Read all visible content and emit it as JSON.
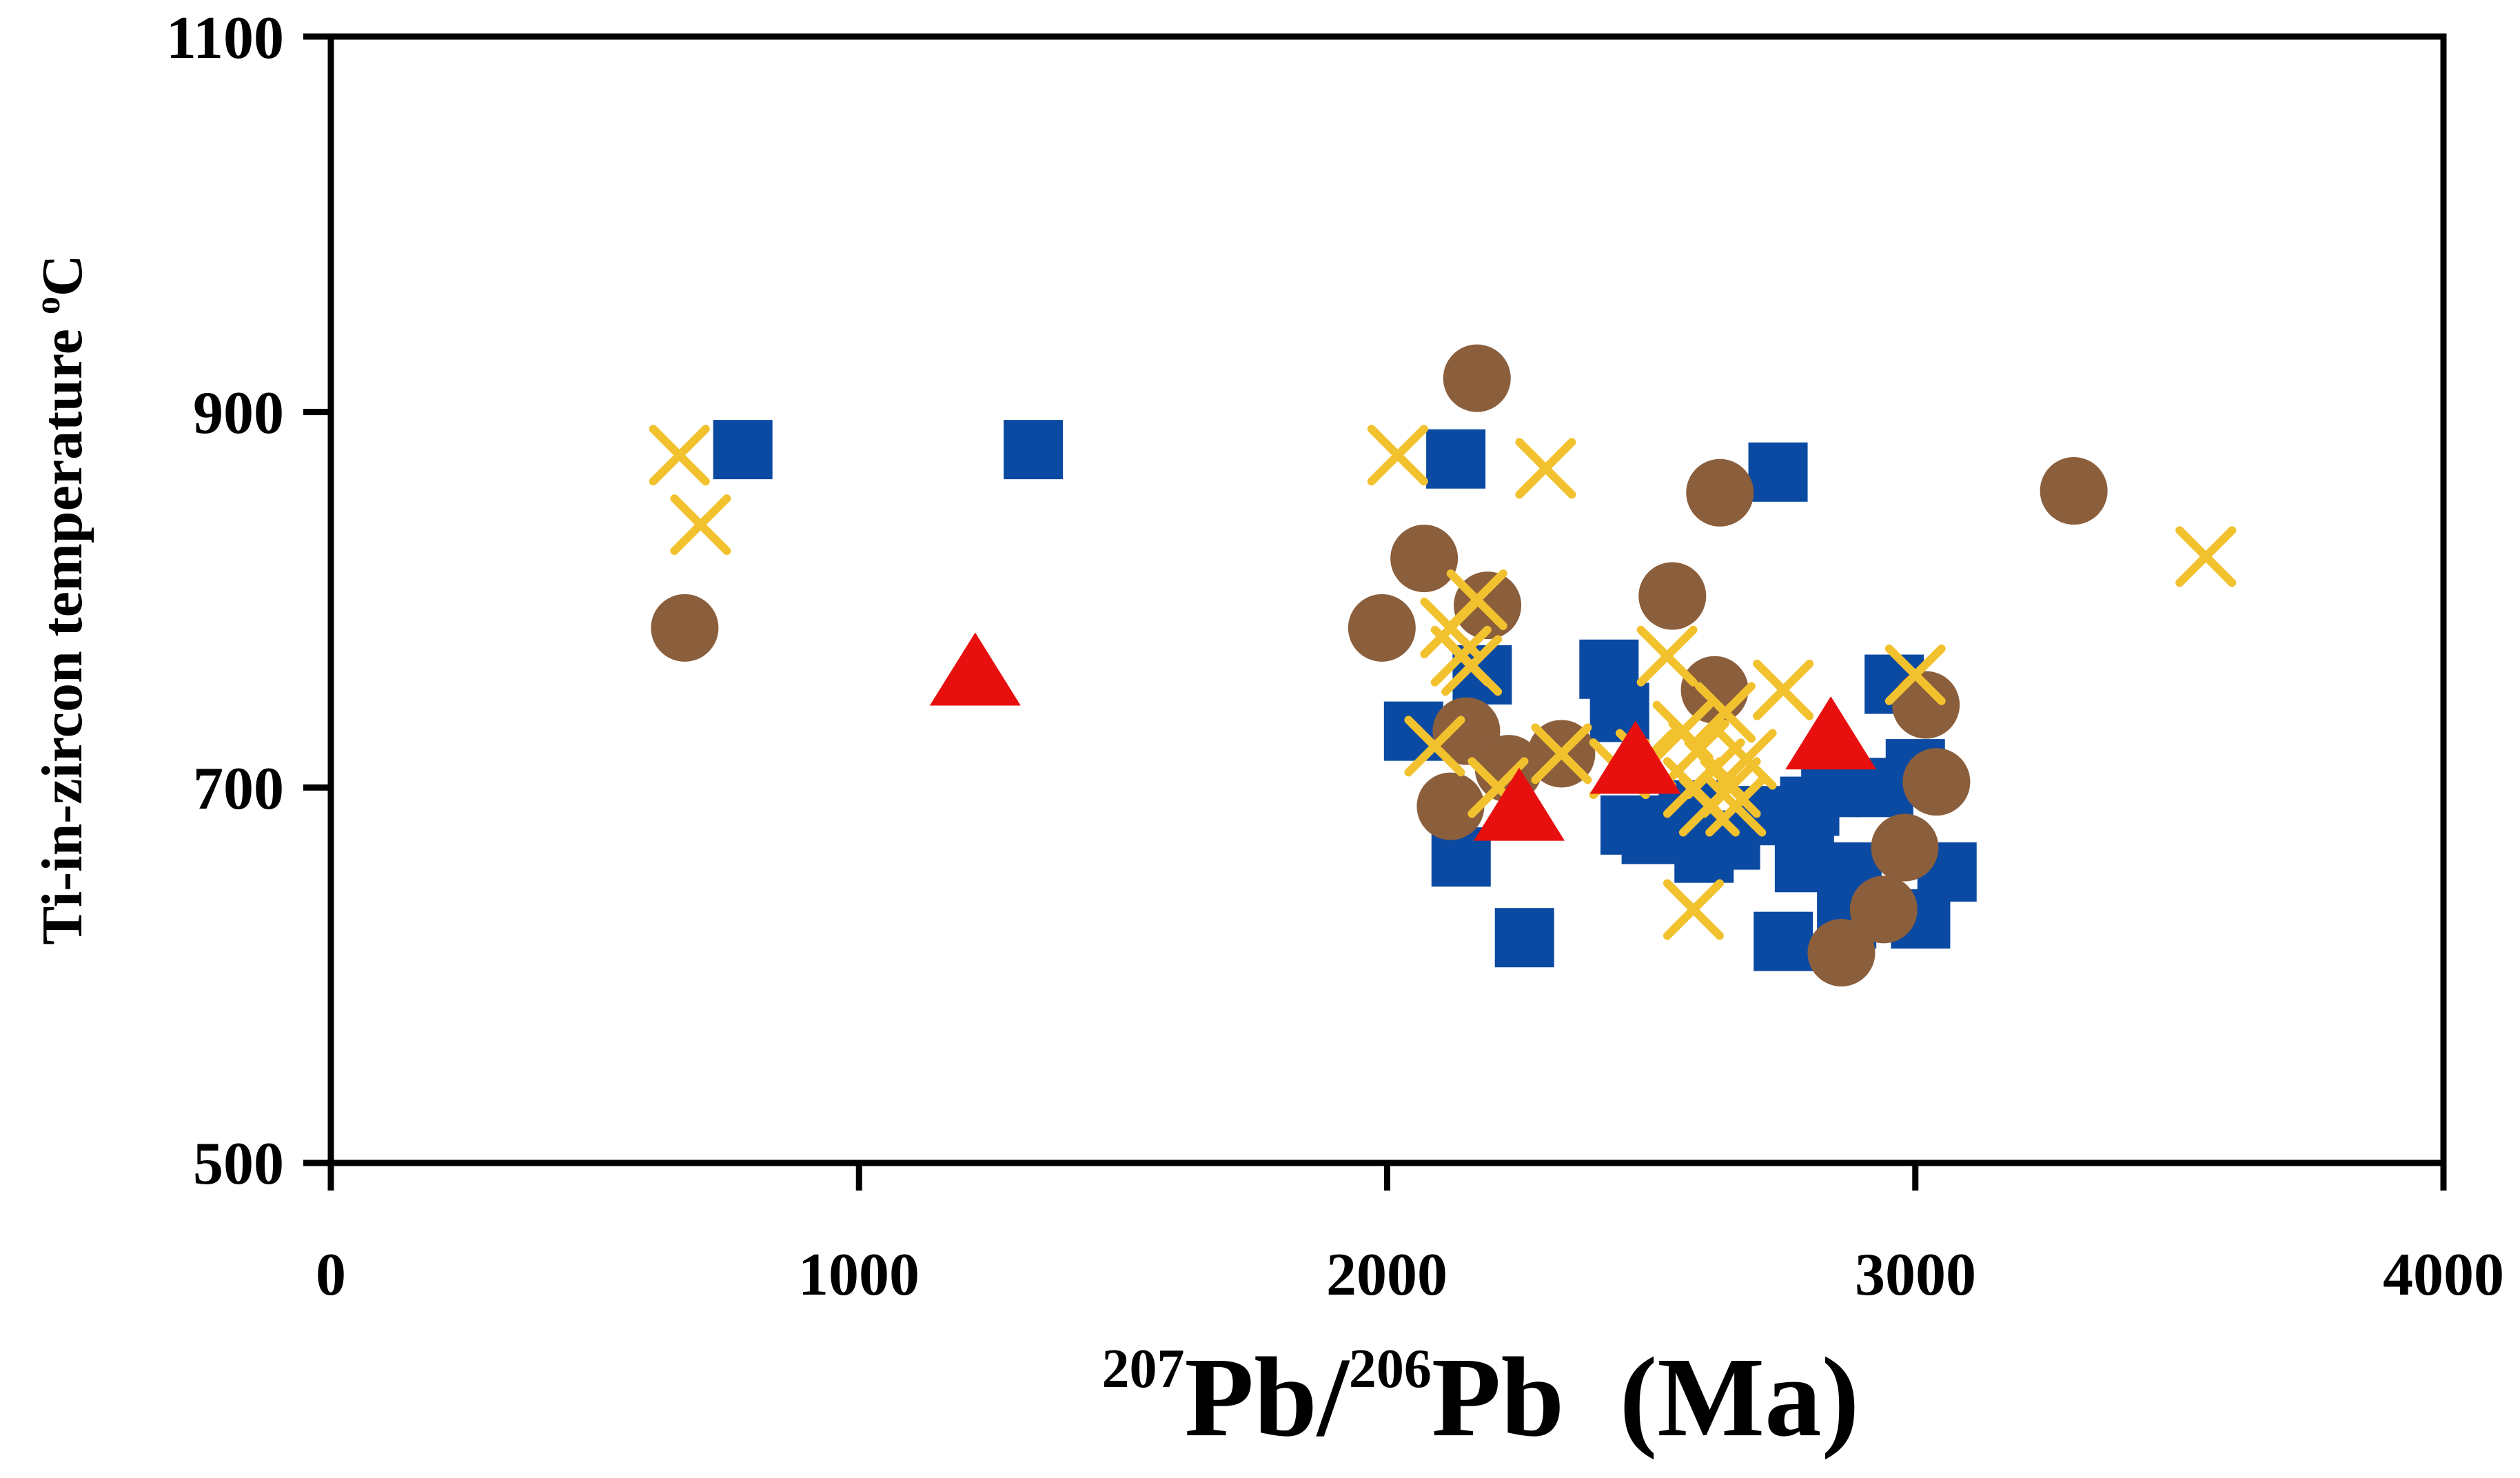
{
  "chart_data": {
    "type": "scatter",
    "title": "",
    "xlabel": {
      "iso1_mass": "207",
      "iso1_element": "Pb",
      "separator": "/",
      "iso2_mass": "206",
      "iso2_element": "Pb",
      "unit": "(Ma)"
    },
    "ylabel": {
      "text": "Ti-in-zircon temperature ",
      "degree": "o",
      "unit": "C"
    },
    "xlim": [
      0,
      4000
    ],
    "ylim": [
      500,
      1100
    ],
    "xticks": [
      "0",
      "1000",
      "2000",
      "3000",
      "4000"
    ],
    "yticks": [
      "500",
      "700",
      "900",
      "1100"
    ],
    "grid": false,
    "legend": "none",
    "colors": {
      "square": "#0b4aa2",
      "circle": "#8b5e3c",
      "cross": "#f2c12e",
      "triangle": "#e80f0f"
    },
    "series": [
      {
        "name": "square",
        "marker": "square",
        "points": [
          [
            780,
            880
          ],
          [
            1330,
            880
          ],
          [
            2050,
            730
          ],
          [
            2130,
            875
          ],
          [
            2140,
            663
          ],
          [
            2180,
            760
          ],
          [
            2260,
            620
          ],
          [
            2420,
            763
          ],
          [
            2440,
            740
          ],
          [
            2460,
            680
          ],
          [
            2500,
            675
          ],
          [
            2570,
            688
          ],
          [
            2600,
            665
          ],
          [
            2650,
            672
          ],
          [
            2720,
            685
          ],
          [
            2740,
            868
          ],
          [
            2750,
            618
          ],
          [
            2790,
            660
          ],
          [
            2800,
            690
          ],
          [
            2840,
            700
          ],
          [
            2870,
            630
          ],
          [
            2880,
            655
          ],
          [
            2940,
            700
          ],
          [
            2960,
            755
          ],
          [
            3000,
            710
          ],
          [
            3010,
            630
          ],
          [
            3060,
            655
          ]
        ]
      },
      {
        "name": "circle",
        "marker": "circle",
        "points": [
          [
            670,
            785
          ],
          [
            1990,
            785
          ],
          [
            2070,
            822
          ],
          [
            2120,
            690
          ],
          [
            2150,
            730
          ],
          [
            2170,
            918
          ],
          [
            2190,
            797
          ],
          [
            2230,
            710
          ],
          [
            2330,
            718
          ],
          [
            2540,
            802
          ],
          [
            2620,
            752
          ],
          [
            2630,
            857
          ],
          [
            2860,
            612
          ],
          [
            2940,
            635
          ],
          [
            2980,
            668
          ],
          [
            3020,
            744
          ],
          [
            3040,
            703
          ],
          [
            3300,
            858
          ]
        ]
      },
      {
        "name": "cross",
        "marker": "cross",
        "points": [
          [
            660,
            877
          ],
          [
            700,
            840
          ],
          [
            2020,
            877
          ],
          [
            2090,
            722
          ],
          [
            2120,
            785
          ],
          [
            2140,
            770
          ],
          [
            2160,
            765
          ],
          [
            2170,
            800
          ],
          [
            2210,
            700
          ],
          [
            2300,
            870
          ],
          [
            2330,
            718
          ],
          [
            2440,
            710
          ],
          [
            2490,
            715
          ],
          [
            2530,
            770
          ],
          [
            2560,
            730
          ],
          [
            2580,
            700
          ],
          [
            2590,
            720
          ],
          [
            2610,
            690
          ],
          [
            2620,
            710
          ],
          [
            2640,
            740
          ],
          [
            2650,
            700
          ],
          [
            2660,
            690
          ],
          [
            2680,
            715
          ],
          [
            2750,
            752
          ],
          [
            2580,
            635
          ],
          [
            3000,
            760
          ],
          [
            3550,
            823
          ]
        ]
      },
      {
        "name": "triangle",
        "marker": "triangle",
        "points": [
          [
            1220,
            762
          ],
          [
            2250,
            690
          ],
          [
            2470,
            715
          ],
          [
            2840,
            728
          ]
        ]
      }
    ]
  }
}
